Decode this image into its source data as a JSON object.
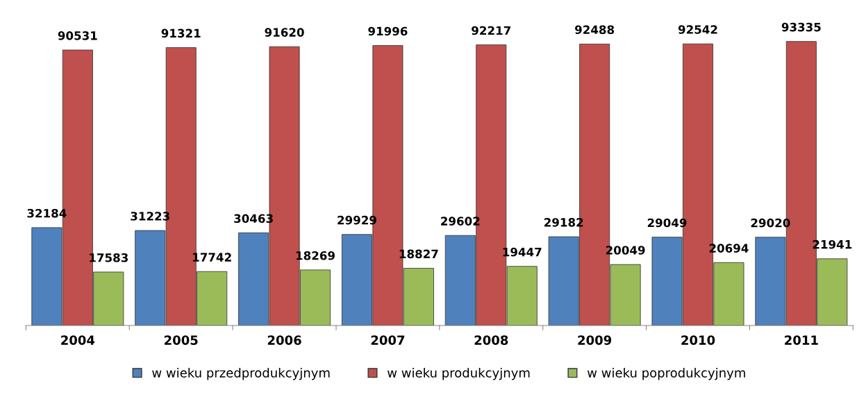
{
  "chart_data": {
    "type": "bar",
    "categories": [
      "2004",
      "2005",
      "2006",
      "2007",
      "2008",
      "2009",
      "2010",
      "2011"
    ],
    "series": [
      {
        "name": "w wieku przedprodukcyjnym",
        "color": "#4f81bd",
        "values": [
          32184,
          31223,
          30463,
          29929,
          29602,
          29182,
          29049,
          29020
        ]
      },
      {
        "name": "w wieku produkcyjnym",
        "color": "#c0504d",
        "values": [
          90531,
          91321,
          91620,
          91996,
          92217,
          92488,
          92542,
          93335
        ]
      },
      {
        "name": "w wieku poprodukcyjnym",
        "color": "#9bbb59",
        "values": [
          17583,
          17742,
          18269,
          18827,
          19447,
          20049,
          20694,
          21941
        ]
      }
    ],
    "data_labels": true,
    "legend": "bottom",
    "grid": false,
    "tick_labels": "x"
  }
}
